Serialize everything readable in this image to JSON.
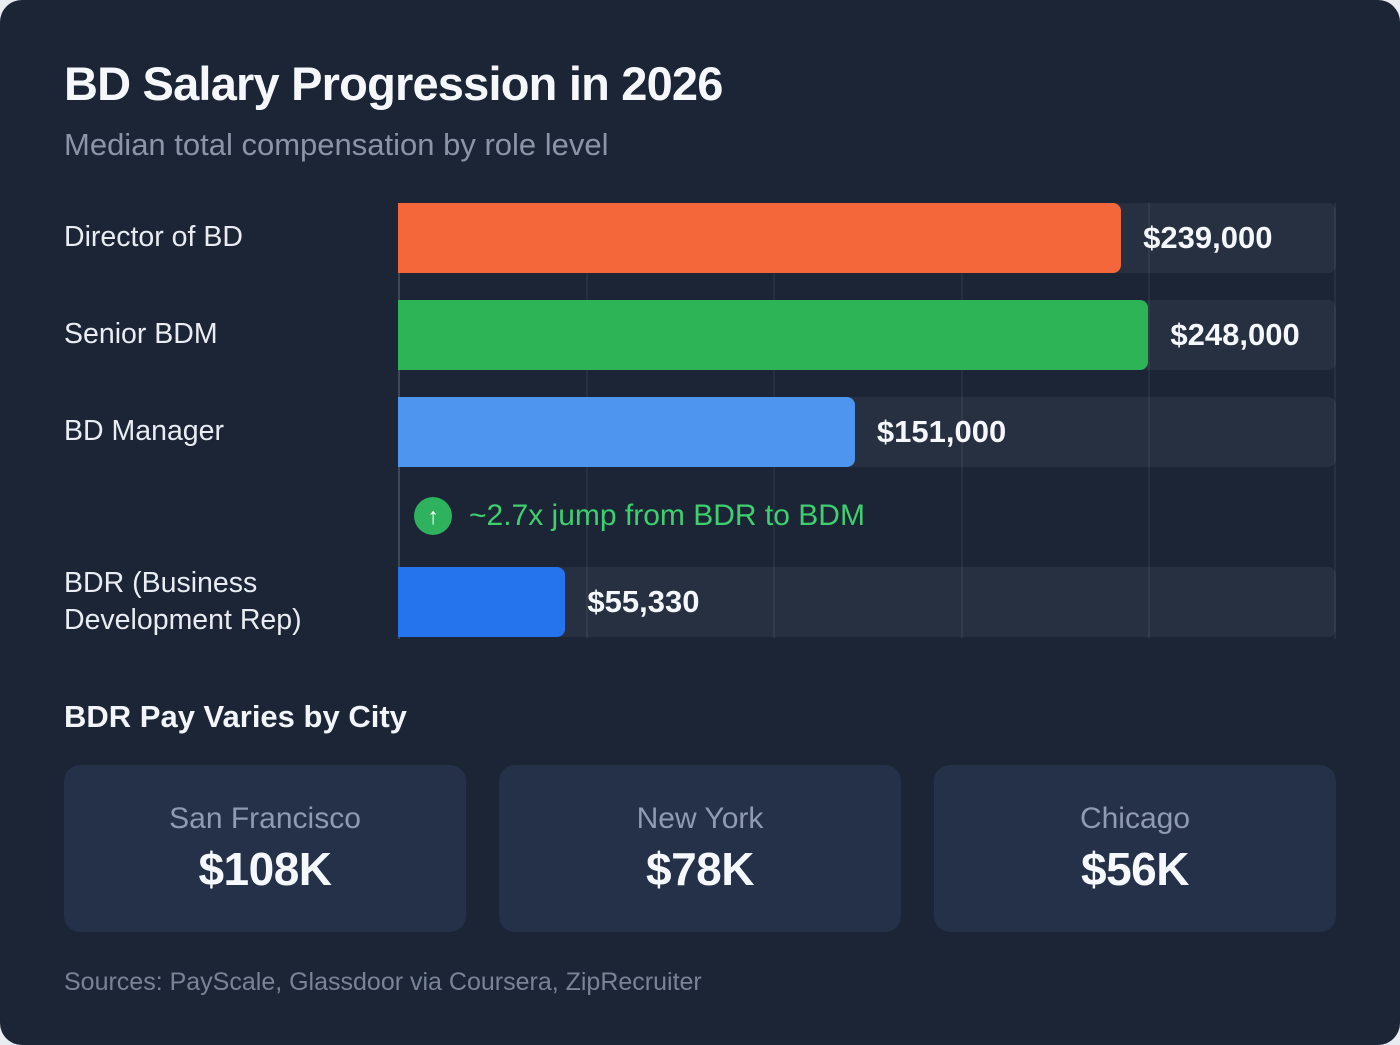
{
  "colors": {
    "background": "#1b2535",
    "card": "#253049",
    "track": "rgba(255,255,255,0.055)",
    "annotation_green": "#3ecf6e",
    "bar_orange": "#f4673a",
    "bar_green": "#2db457",
    "bar_blue": "#4e95ef",
    "bar_deep_blue": "#2673ee"
  },
  "header": {
    "title": "BD Salary Progression in 2026",
    "subtitle": "Median total compensation by role level"
  },
  "chart_data": {
    "type": "bar",
    "orientation": "horizontal",
    "title": "BD Salary Progression in 2026",
    "subtitle": "Median total compensation by role level",
    "categories": [
      "Director of BD",
      "Senior BDM",
      "BD Manager",
      "BDR (Business Development Rep)"
    ],
    "values": [
      239000,
      248000,
      151000,
      55330
    ],
    "value_labels": [
      "$239,000",
      "$248,000",
      "$151,000",
      "$55,330"
    ],
    "bar_colors": [
      "#f4673a",
      "#2db457",
      "#4e95ef",
      "#2673ee"
    ],
    "xlim": [
      0,
      310000
    ],
    "grid": true,
    "legend": "none",
    "annotation": {
      "icon": "up-arrow-icon",
      "text": "~2.7x jump from BDR to BDM"
    }
  },
  "city_section": {
    "title": "BDR Pay Varies by City",
    "cards": [
      {
        "city": "San Francisco",
        "value": "$108K"
      },
      {
        "city": "New York",
        "value": "$78K"
      },
      {
        "city": "Chicago",
        "value": "$56K"
      }
    ]
  },
  "footer": {
    "sources": "Sources: PayScale, Glassdoor via Coursera, ZipRecruiter"
  }
}
